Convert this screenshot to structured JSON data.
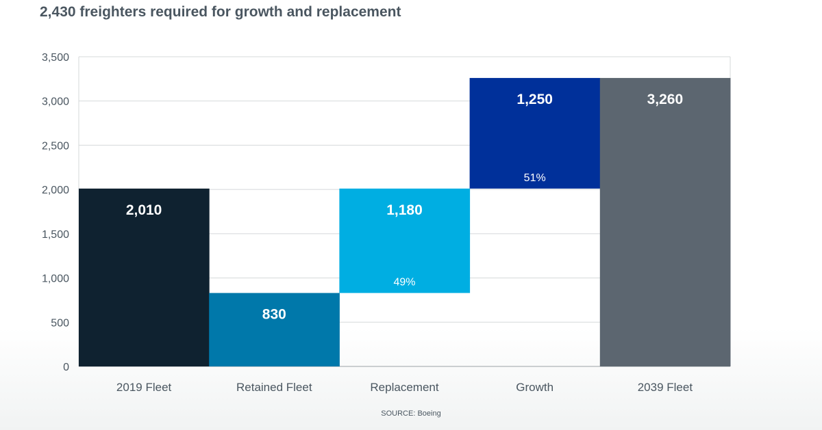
{
  "title": "2,430 freighters required for growth and replacement",
  "source": "SOURCE: Boeing",
  "colors": {
    "fleet_2019": "#0f2230",
    "retained": "#0078aa",
    "replacement": "#00aee2",
    "growth": "#00309a",
    "fleet_2039": "#5c6670",
    "grid": "#d5d8da",
    "axis_text": "#4a5660"
  },
  "chart_data": {
    "type": "bar",
    "subtype": "waterfall",
    "categories": [
      "2019 Fleet",
      "Retained Fleet",
      "Replacement",
      "Growth",
      "2039 Fleet"
    ],
    "bars": [
      {
        "category": "2019 Fleet",
        "base": 0,
        "top": 2010,
        "label": "2,010",
        "color": "#0f2230"
      },
      {
        "category": "Retained Fleet",
        "base": 0,
        "top": 830,
        "label": "830",
        "color": "#0078aa"
      },
      {
        "category": "Replacement",
        "base": 830,
        "top": 2010,
        "label": "1,180",
        "sublabel": "49%",
        "color": "#00aee2"
      },
      {
        "category": "Growth",
        "base": 2010,
        "top": 3260,
        "label": "1,250",
        "sublabel": "51%",
        "color": "#00309a"
      },
      {
        "category": "2039 Fleet",
        "base": 0,
        "top": 3260,
        "label": "3,260",
        "color": "#5c6670"
      }
    ],
    "ylim": [
      0,
      3500
    ],
    "yticks": [
      0,
      500,
      1000,
      1500,
      2000,
      2500,
      3000,
      3500
    ],
    "ytick_labels": [
      "0",
      "500",
      "1,000",
      "1,500",
      "2,000",
      "2,500",
      "3,000",
      "3,500"
    ],
    "xlabel": "",
    "ylabel": "",
    "grid": true,
    "legend": "none"
  }
}
